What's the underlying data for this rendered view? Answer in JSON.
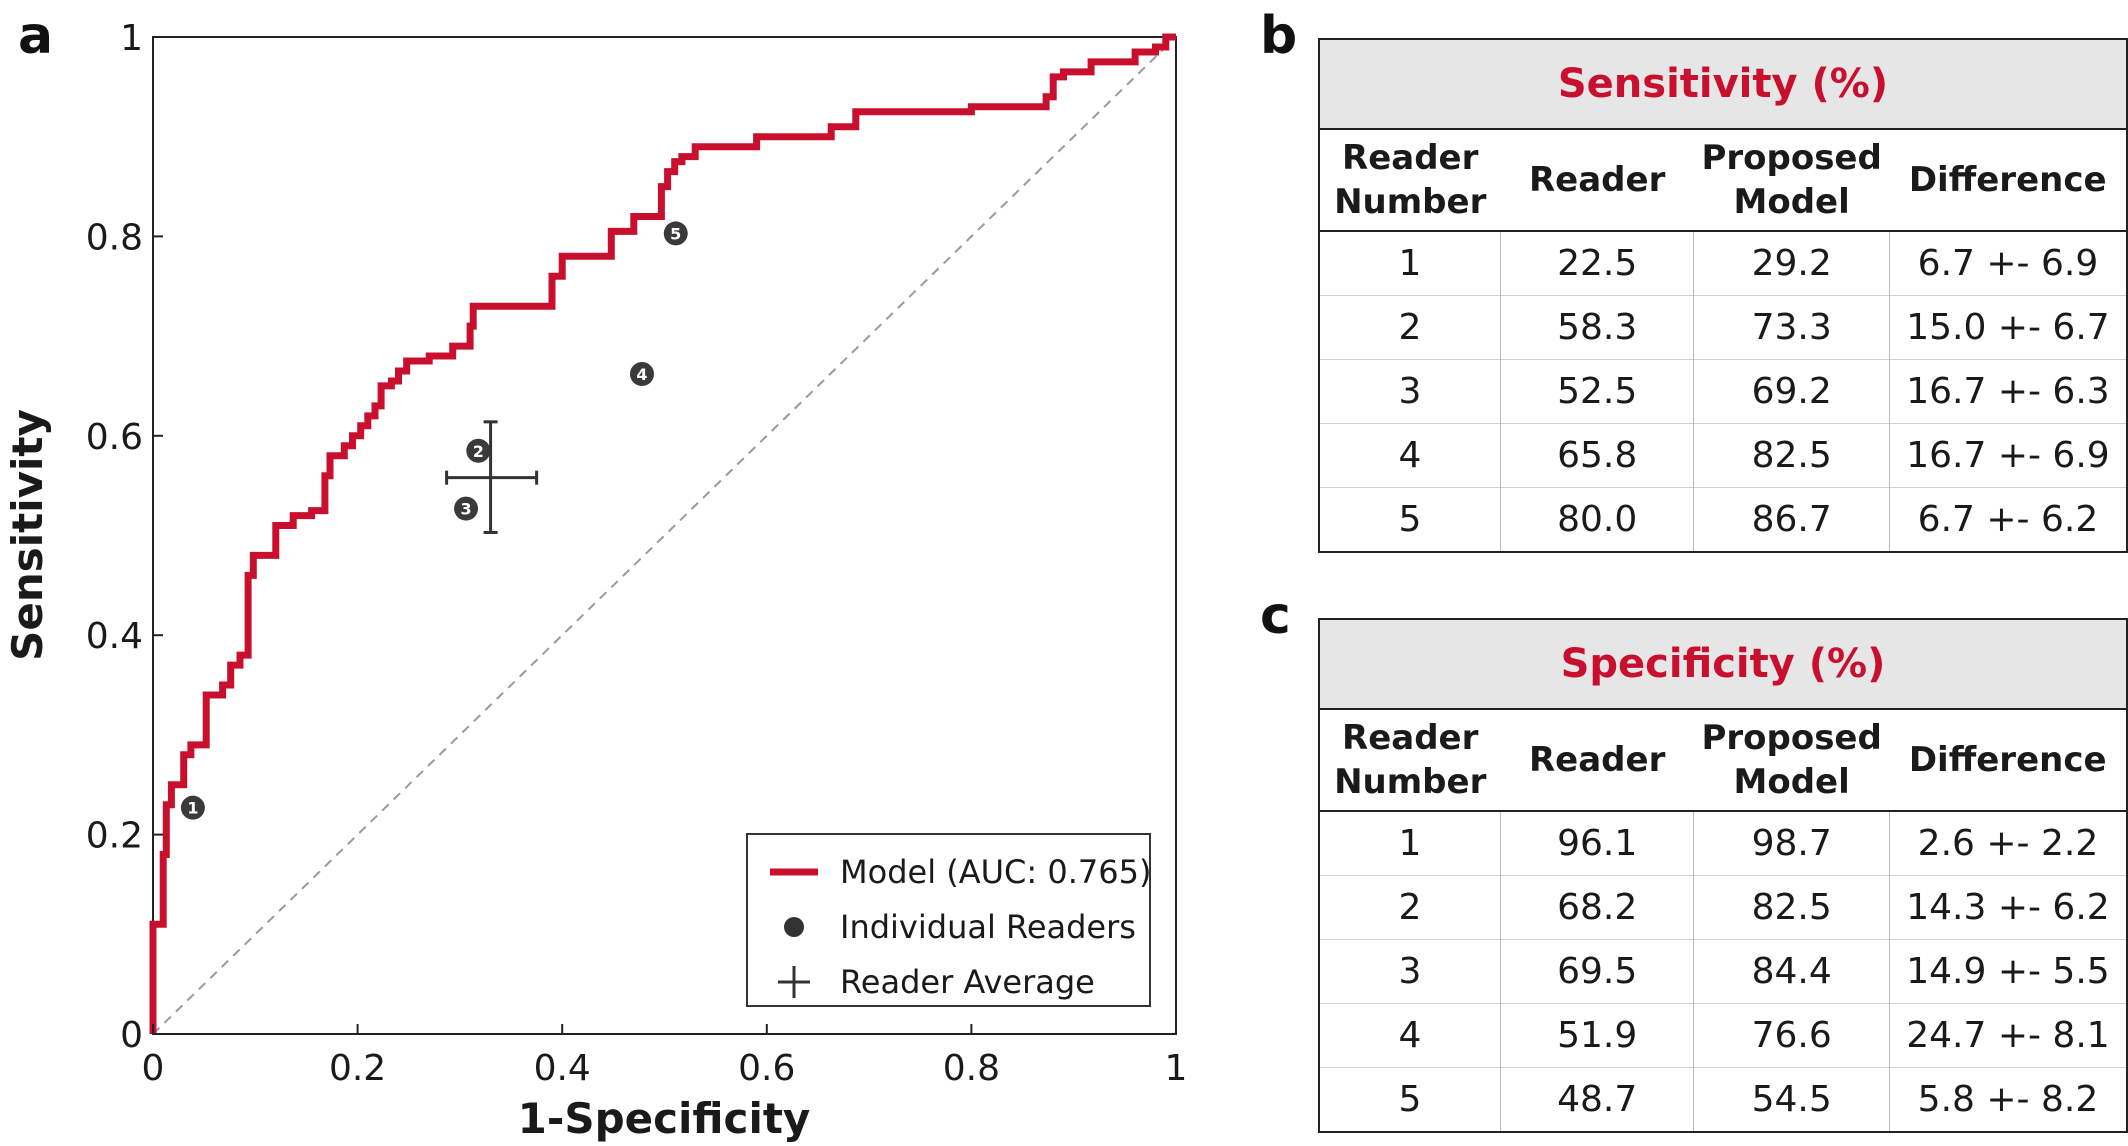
{
  "panels": {
    "a": "a",
    "b": "b",
    "c": "c"
  },
  "chart_data": {
    "type": "line",
    "xlabel": "1-Specificity",
    "ylabel": "Sensitivity",
    "xlim": [
      0,
      1
    ],
    "ylim": [
      0,
      1
    ],
    "x_ticks": [
      0,
      0.2,
      0.4,
      0.6,
      0.8,
      1
    ],
    "x_tick_labels": [
      "0",
      "0.2",
      "0.4",
      "0.6",
      "0.8",
      "1"
    ],
    "y_ticks": [
      0,
      0.2,
      0.4,
      0.6,
      0.8,
      1
    ],
    "y_tick_labels": [
      "0",
      "0.2",
      "0.4",
      "0.6",
      "0.8",
      "1"
    ],
    "series": [
      {
        "name": "Model (AUC: 0.765)",
        "color": "#c8102e",
        "points": [
          [
            0,
            0
          ],
          [
            0,
            0.11
          ],
          [
            0.01,
            0.11
          ],
          [
            0.01,
            0.18
          ],
          [
            0.013,
            0.18
          ],
          [
            0.013,
            0.23
          ],
          [
            0.018,
            0.23
          ],
          [
            0.018,
            0.25
          ],
          [
            0.03,
            0.25
          ],
          [
            0.03,
            0.28
          ],
          [
            0.037,
            0.28
          ],
          [
            0.037,
            0.29
          ],
          [
            0.052,
            0.29
          ],
          [
            0.052,
            0.34
          ],
          [
            0.068,
            0.34
          ],
          [
            0.068,
            0.35
          ],
          [
            0.076,
            0.35
          ],
          [
            0.076,
            0.37
          ],
          [
            0.085,
            0.37
          ],
          [
            0.085,
            0.38
          ],
          [
            0.093,
            0.38
          ],
          [
            0.093,
            0.46
          ],
          [
            0.098,
            0.46
          ],
          [
            0.098,
            0.48
          ],
          [
            0.12,
            0.48
          ],
          [
            0.12,
            0.51
          ],
          [
            0.137,
            0.51
          ],
          [
            0.137,
            0.52
          ],
          [
            0.155,
            0.52
          ],
          [
            0.155,
            0.525
          ],
          [
            0.168,
            0.525
          ],
          [
            0.168,
            0.56
          ],
          [
            0.173,
            0.56
          ],
          [
            0.173,
            0.58
          ],
          [
            0.187,
            0.58
          ],
          [
            0.187,
            0.59
          ],
          [
            0.195,
            0.59
          ],
          [
            0.195,
            0.6
          ],
          [
            0.203,
            0.6
          ],
          [
            0.203,
            0.61
          ],
          [
            0.21,
            0.61
          ],
          [
            0.21,
            0.62
          ],
          [
            0.217,
            0.62
          ],
          [
            0.217,
            0.63
          ],
          [
            0.223,
            0.63
          ],
          [
            0.223,
            0.65
          ],
          [
            0.233,
            0.65
          ],
          [
            0.233,
            0.655
          ],
          [
            0.24,
            0.655
          ],
          [
            0.24,
            0.665
          ],
          [
            0.248,
            0.665
          ],
          [
            0.248,
            0.675
          ],
          [
            0.27,
            0.675
          ],
          [
            0.27,
            0.68
          ],
          [
            0.293,
            0.68
          ],
          [
            0.293,
            0.69
          ],
          [
            0.31,
            0.69
          ],
          [
            0.31,
            0.71
          ],
          [
            0.313,
            0.71
          ],
          [
            0.313,
            0.73
          ],
          [
            0.39,
            0.73
          ],
          [
            0.39,
            0.76
          ],
          [
            0.4,
            0.76
          ],
          [
            0.4,
            0.78
          ],
          [
            0.448,
            0.78
          ],
          [
            0.448,
            0.805
          ],
          [
            0.47,
            0.805
          ],
          [
            0.47,
            0.82
          ],
          [
            0.497,
            0.82
          ],
          [
            0.497,
            0.85
          ],
          [
            0.503,
            0.85
          ],
          [
            0.503,
            0.865
          ],
          [
            0.51,
            0.865
          ],
          [
            0.51,
            0.875
          ],
          [
            0.517,
            0.875
          ],
          [
            0.517,
            0.88
          ],
          [
            0.53,
            0.88
          ],
          [
            0.53,
            0.89
          ],
          [
            0.59,
            0.89
          ],
          [
            0.59,
            0.9
          ],
          [
            0.663,
            0.9
          ],
          [
            0.663,
            0.91
          ],
          [
            0.687,
            0.91
          ],
          [
            0.687,
            0.925
          ],
          [
            0.8,
            0.925
          ],
          [
            0.8,
            0.93
          ],
          [
            0.873,
            0.93
          ],
          [
            0.873,
            0.94
          ],
          [
            0.88,
            0.94
          ],
          [
            0.88,
            0.96
          ],
          [
            0.89,
            0.96
          ],
          [
            0.89,
            0.965
          ],
          [
            0.917,
            0.965
          ],
          [
            0.917,
            0.975
          ],
          [
            0.96,
            0.975
          ],
          [
            0.96,
            0.985
          ],
          [
            0.98,
            0.985
          ],
          [
            0.98,
            0.99
          ],
          [
            0.99,
            0.99
          ],
          [
            0.99,
            1
          ],
          [
            1,
            1
          ]
        ]
      },
      {
        "name": "chance",
        "style": "dashed",
        "color": "#999999",
        "points": [
          [
            0,
            0
          ],
          [
            1,
            1
          ]
        ]
      }
    ],
    "readers": [
      {
        "label": "1",
        "x": 0.039,
        "y": 0.227
      },
      {
        "label": "2",
        "x": 0.318,
        "y": 0.585
      },
      {
        "label": "3",
        "x": 0.306,
        "y": 0.527
      },
      {
        "label": "4",
        "x": 0.478,
        "y": 0.662
      },
      {
        "label": "5",
        "x": 0.511,
        "y": 0.803
      }
    ],
    "reader_average": {
      "x": 0.33,
      "y": 0.558,
      "x_err": [
        0.287,
        0.375
      ],
      "y_err": [
        0.503,
        0.614
      ]
    },
    "legend": {
      "position": "bottom-right",
      "items": [
        "Model (AUC: 0.765)",
        "Individual Readers",
        "Reader Average"
      ]
    }
  },
  "sensitivity_table": {
    "title": "Sensitivity (%)",
    "headers": [
      [
        "Reader",
        "Number"
      ],
      [
        "Reader"
      ],
      [
        "Proposed",
        "Model"
      ],
      [
        "Difference"
      ]
    ],
    "rows": [
      [
        "1",
        "22.5",
        "29.2",
        "6.7 +- 6.9"
      ],
      [
        "2",
        "58.3",
        "73.3",
        "15.0 +- 6.7"
      ],
      [
        "3",
        "52.5",
        "69.2",
        "16.7 +- 6.3"
      ],
      [
        "4",
        "65.8",
        "82.5",
        "16.7 +- 6.9"
      ],
      [
        "5",
        "80.0",
        "86.7",
        "6.7 +- 6.2"
      ]
    ]
  },
  "specificity_table": {
    "title": "Specificity (%)",
    "headers": [
      [
        "Reader",
        "Number"
      ],
      [
        "Reader"
      ],
      [
        "Proposed",
        "Model"
      ],
      [
        "Difference"
      ]
    ],
    "rows": [
      [
        "1",
        "96.1",
        "98.7",
        "2.6 +- 2.2"
      ],
      [
        "2",
        "68.2",
        "82.5",
        "14.3 +- 6.2"
      ],
      [
        "3",
        "69.5",
        "84.4",
        "14.9 +- 5.5"
      ],
      [
        "4",
        "51.9",
        "76.6",
        "24.7 +- 8.1"
      ],
      [
        "5",
        "48.7",
        "54.5",
        "5.8 +- 8.2"
      ]
    ]
  }
}
